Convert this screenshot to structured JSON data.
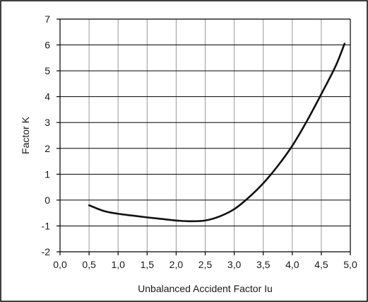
{
  "chart_data": {
    "type": "line",
    "title": "",
    "xlabel": "Unbalanced Accident Factor Iu",
    "ylabel": "Factor K",
    "xlim": [
      0.0,
      5.0
    ],
    "ylim": [
      -2,
      7
    ],
    "x_ticks": [
      "0,0",
      "0,5",
      "1,0",
      "1,5",
      "2,0",
      "2,5",
      "3,0",
      "3,5",
      "4,0",
      "4,5",
      "5,0"
    ],
    "y_ticks": [
      "-2",
      "-1",
      "0",
      "1",
      "2",
      "3",
      "4",
      "5",
      "6",
      "7"
    ],
    "grid": true,
    "legend": "none",
    "series": [
      {
        "x": [
          0.5,
          0.75,
          1.0,
          1.25,
          1.5,
          1.75,
          2.0,
          2.25,
          2.5,
          2.75,
          3.0,
          3.25,
          3.5,
          3.75,
          4.0,
          4.25,
          4.5,
          4.75,
          4.9
        ],
        "y": [
          -0.2,
          -0.42,
          -0.53,
          -0.6,
          -0.67,
          -0.73,
          -0.79,
          -0.82,
          -0.79,
          -0.63,
          -0.35,
          0.1,
          0.65,
          1.32,
          2.1,
          3.05,
          4.1,
          5.2,
          6.05
        ]
      }
    ]
  }
}
